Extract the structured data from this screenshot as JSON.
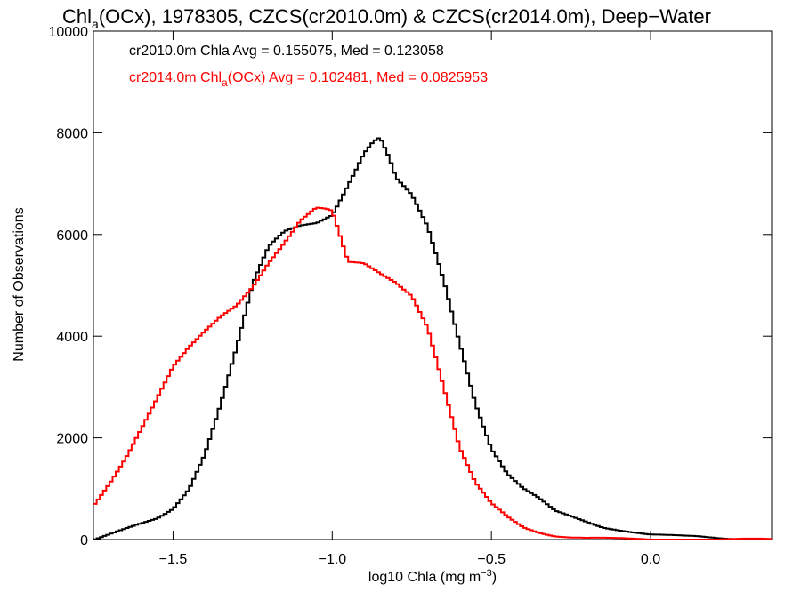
{
  "chart_data": {
    "type": "line",
    "title_main": "Chl",
    "title_sub": "a",
    "title_rest": "(OCx), 1978305, CZCS(cr2010.0m) & CZCS(cr2014.0m), Deep−Water",
    "xlabel_main": "log10 Chla (mg m",
    "xlabel_sup": "−3",
    "xlabel_end": ")",
    "ylabel": "Number of Observations",
    "xlim": [
      -1.75,
      0.38
    ],
    "ylim": [
      0,
      10000
    ],
    "x_ticks": [
      -1.5,
      -1.0,
      -0.5,
      0.0
    ],
    "x_tick_labels": [
      "−1.5",
      "−1.0",
      "−0.5",
      "0.0"
    ],
    "y_ticks": [
      0,
      2000,
      4000,
      6000,
      8000,
      10000
    ],
    "y_tick_labels": [
      "0",
      "2000",
      "4000",
      "6000",
      "8000",
      "10000"
    ],
    "grid": false,
    "legend": {
      "line1": "cr2010.0m Chla Avg = 0.155075, Med = 0.123058",
      "line2_a": "cr2014.0m Chl",
      "line2_sub": "a",
      "line2_b": "(OCx) Avg = 0.102481, Med = 0.0825953"
    },
    "series": [
      {
        "color": "#000000",
        "x": [
          -1.75,
          -1.7,
          -1.65,
          -1.6,
          -1.55,
          -1.5,
          -1.45,
          -1.4,
          -1.35,
          -1.3,
          -1.25,
          -1.2,
          -1.15,
          -1.1,
          -1.05,
          -1.0,
          -0.95,
          -0.9,
          -0.87,
          -0.85,
          -0.82,
          -0.8,
          -0.75,
          -0.7,
          -0.65,
          -0.6,
          -0.55,
          -0.5,
          -0.45,
          -0.4,
          -0.35,
          -0.3,
          -0.25,
          -0.2,
          -0.15,
          -0.1,
          -0.05,
          0.0,
          0.05,
          0.1,
          0.15,
          0.2,
          0.25,
          0.3,
          0.38
        ],
        "y": [
          0,
          100,
          200,
          300,
          400,
          600,
          1000,
          1700,
          2700,
          3800,
          5000,
          5700,
          6000,
          6150,
          6250,
          6450,
          7050,
          7650,
          7850,
          7900,
          7450,
          7050,
          6700,
          6100,
          5100,
          3900,
          2700,
          1800,
          1300,
          1000,
          800,
          550,
          450,
          350,
          250,
          200,
          150,
          100,
          80,
          60,
          50,
          30,
          20,
          10,
          0
        ]
      },
      {
        "color": "#ff0000",
        "x": [
          -1.75,
          -1.7,
          -1.65,
          -1.6,
          -1.55,
          -1.5,
          -1.45,
          -1.4,
          -1.35,
          -1.3,
          -1.25,
          -1.2,
          -1.15,
          -1.1,
          -1.05,
          -1.02,
          -1.0,
          -0.97,
          -0.95,
          -0.9,
          -0.85,
          -0.8,
          -0.75,
          -0.7,
          -0.65,
          -0.6,
          -0.55,
          -0.5,
          -0.45,
          -0.4,
          -0.35,
          -0.3,
          -0.25,
          -0.2,
          -0.15,
          -0.1,
          -0.05,
          0.0,
          0.05,
          0.1,
          0.2,
          0.38
        ],
        "y": [
          650,
          1100,
          1600,
          2200,
          2800,
          3400,
          3750,
          4050,
          4350,
          4600,
          5000,
          5500,
          5900,
          6300,
          6500,
          6450,
          6400,
          5800,
          5400,
          5400,
          5250,
          5100,
          4850,
          4200,
          3000,
          1800,
          1100,
          700,
          450,
          250,
          150,
          80,
          50,
          30,
          20,
          10,
          5,
          0,
          0,
          0,
          0,
          0
        ]
      }
    ]
  }
}
